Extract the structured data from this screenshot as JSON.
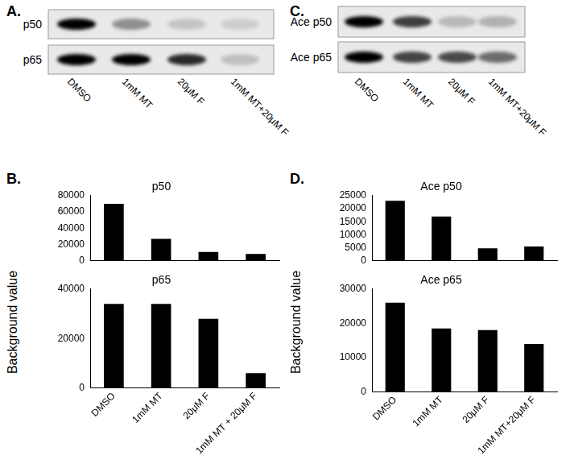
{
  "blots": [
    {
      "panel": "A.",
      "rows": [
        "p50",
        "p65"
      ],
      "lanes": [
        "DMSO",
        "1mM MT",
        "20μM F",
        "1mM MT+20μM F"
      ]
    },
    {
      "panel": "C.",
      "rows": [
        "Ace p50",
        "Ace p65"
      ],
      "lanes": [
        "DMSO",
        "1mM MT",
        "20μM F",
        "1mM MT+20μM F"
      ]
    }
  ],
  "chart_data": [
    {
      "type": "bar",
      "annotations": [
        "B."
      ],
      "title": "p50",
      "categories": [
        null,
        null,
        null,
        null
      ],
      "values": [
        70000,
        27000,
        11000,
        8500
      ],
      "color": "#000000",
      "ylim": [
        0,
        80000
      ],
      "yticks": [
        0,
        20000,
        40000,
        60000,
        80000
      ],
      "grid": false
    },
    {
      "type": "bar",
      "title": "p65",
      "y_label": "Background value",
      "categories": [
        "DMSO",
        "1mM MT",
        "20μM F",
        "1mM MT + 20μM F"
      ],
      "values": [
        34000,
        34000,
        28000,
        6000
      ],
      "color": "#000000",
      "ylim": [
        0,
        40000
      ],
      "yticks": [
        0,
        20000,
        40000
      ],
      "grid": false
    },
    {
      "type": "bar",
      "annotations": [
        "D."
      ],
      "title": "Ace p50",
      "categories": [
        null,
        null,
        null,
        null
      ],
      "values": [
        23000,
        17000,
        4800,
        5500
      ],
      "color": "#000000",
      "ylim": [
        0,
        25000
      ],
      "yticks": [
        0,
        5000,
        10000,
        15000,
        20000,
        25000
      ],
      "grid": false
    },
    {
      "type": "bar",
      "title": "Ace p65",
      "y_label": "Background value",
      "categories": [
        "DMSO",
        "1mM MT",
        "20μM F",
        "1mM MT+20μM F"
      ],
      "values": [
        26000,
        18500,
        18000,
        14000
      ],
      "color": "#000000",
      "ylim": [
        0,
        30000
      ],
      "yticks": [
        0,
        10000,
        20000,
        30000
      ],
      "grid": false
    }
  ]
}
